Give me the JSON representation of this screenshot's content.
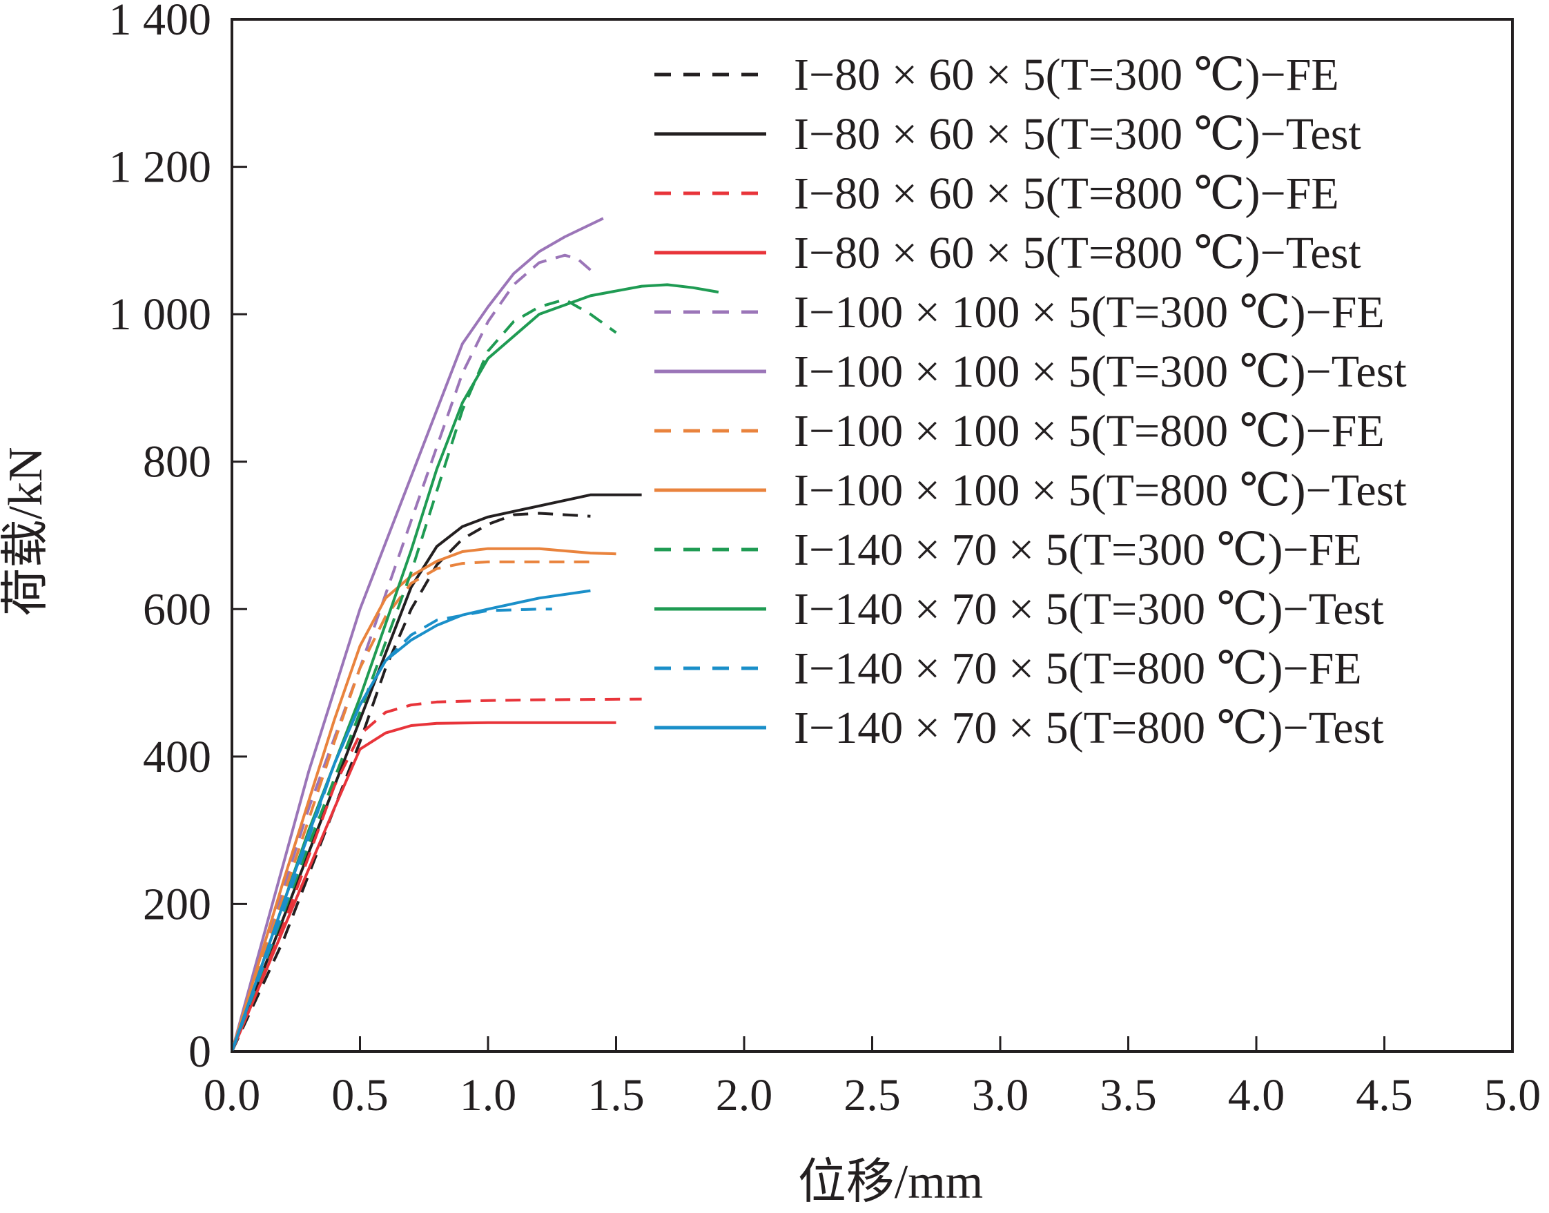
{
  "chart_data": {
    "type": "line",
    "xlabel": "位移/mm",
    "ylabel": "荷载/kN",
    "xlim": [
      0,
      5.0
    ],
    "ylim": [
      0,
      1400
    ],
    "xticks": [
      "0.0",
      "0.5",
      "1.0",
      "1.5",
      "2.0",
      "2.5",
      "3.0",
      "3.5",
      "4.0",
      "4.5",
      "5.0"
    ],
    "yticks": [
      "0",
      "200",
      "400",
      "600",
      "800",
      "1 000",
      "1 200",
      "1 400"
    ],
    "grid": false,
    "legend_position": "top-right",
    "series": [
      {
        "name": "I−80 × 60 × 5(T=300 ℃)−FE",
        "color": "#231f20",
        "dash": true,
        "x": [
          0,
          0.2,
          0.4,
          0.5,
          0.6,
          0.7,
          0.8,
          0.9,
          1.0,
          1.1,
          1.2,
          1.3,
          1.4
        ],
        "y": [
          0,
          150,
          330,
          420,
          520,
          600,
          660,
          695,
          715,
          728,
          730,
          728,
          726
        ]
      },
      {
        "name": "I−80 × 60 × 5(T=300 ℃)−Test",
        "color": "#231f20",
        "dash": false,
        "x": [
          0,
          0.2,
          0.4,
          0.5,
          0.6,
          0.7,
          0.8,
          0.9,
          1.0,
          1.2,
          1.4,
          1.6
        ],
        "y": [
          0,
          180,
          360,
          450,
          540,
          630,
          685,
          712,
          725,
          740,
          755,
          755
        ]
      },
      {
        "name": "I−80 × 60 × 5(T=800 ℃)−FE",
        "color": "#e8343a",
        "dash": true,
        "x": [
          0,
          0.2,
          0.4,
          0.5,
          0.6,
          0.7,
          0.8,
          1.0,
          1.2,
          1.6
        ],
        "y": [
          0,
          170,
          360,
          430,
          460,
          470,
          474,
          476,
          477,
          478
        ]
      },
      {
        "name": "I−80 × 60 × 5(T=800 ℃)−Test",
        "color": "#e8343a",
        "dash": false,
        "x": [
          0,
          0.2,
          0.4,
          0.5,
          0.6,
          0.7,
          0.8,
          1.0,
          1.2,
          1.5
        ],
        "y": [
          0,
          165,
          330,
          410,
          432,
          442,
          445,
          446,
          446,
          446
        ]
      },
      {
        "name": "I−100 × 100 × 5(T=300 ℃)−FE",
        "color": "#9b75b8",
        "dash": true,
        "x": [
          0,
          0.3,
          0.5,
          0.7,
          0.9,
          1.0,
          1.1,
          1.2,
          1.3,
          1.35,
          1.4
        ],
        "y": [
          0,
          330,
          520,
          720,
          920,
          990,
          1040,
          1070,
          1080,
          1075,
          1060
        ]
      },
      {
        "name": "I−100 × 100 × 5(T=300 ℃)−Test",
        "color": "#9b75b8",
        "dash": false,
        "x": [
          0,
          0.3,
          0.5,
          0.7,
          0.9,
          1.0,
          1.1,
          1.2,
          1.3,
          1.45
        ],
        "y": [
          0,
          380,
          600,
          780,
          960,
          1010,
          1055,
          1085,
          1105,
          1130
        ]
      },
      {
        "name": "I−100 × 100 × 5(T=800 ℃)−FE",
        "color": "#e9833d",
        "dash": true,
        "x": [
          0,
          0.2,
          0.4,
          0.5,
          0.6,
          0.7,
          0.8,
          0.9,
          1.0,
          1.2,
          1.4
        ],
        "y": [
          0,
          210,
          420,
          520,
          590,
          635,
          655,
          662,
          664,
          664,
          664
        ]
      },
      {
        "name": "I−100 × 100 × 5(T=800 ℃)−Test",
        "color": "#e9833d",
        "dash": false,
        "x": [
          0,
          0.2,
          0.4,
          0.5,
          0.6,
          0.7,
          0.8,
          0.9,
          1.0,
          1.2,
          1.4,
          1.5
        ],
        "y": [
          0,
          230,
          450,
          550,
          615,
          645,
          665,
          678,
          682,
          682,
          676,
          675
        ]
      },
      {
        "name": "I−140 × 70 × 5(T=300 ℃)−FE",
        "color": "#1f9b53",
        "dash": true,
        "x": [
          0,
          0.3,
          0.5,
          0.7,
          0.8,
          0.9,
          1.0,
          1.1,
          1.2,
          1.3,
          1.4,
          1.5
        ],
        "y": [
          0,
          280,
          460,
          650,
          760,
          870,
          950,
          990,
          1010,
          1020,
          1000,
          975
        ]
      },
      {
        "name": "I−140 × 70 × 5(T=300 ℃)−Test",
        "color": "#1f9b53",
        "dash": false,
        "x": [
          0,
          0.3,
          0.5,
          0.7,
          0.8,
          0.9,
          1.0,
          1.2,
          1.4,
          1.6,
          1.7,
          1.8,
          1.9
        ],
        "y": [
          0,
          300,
          480,
          680,
          790,
          880,
          940,
          1000,
          1025,
          1038,
          1040,
          1036,
          1030
        ]
      },
      {
        "name": "I−140 × 70 × 5(T=800 ℃)−FE",
        "color": "#1a8fc9",
        "dash": true,
        "x": [
          0,
          0.2,
          0.4,
          0.5,
          0.6,
          0.7,
          0.8,
          1.0,
          1.2,
          1.25
        ],
        "y": [
          0,
          190,
          390,
          470,
          530,
          565,
          585,
          598,
          600,
          600
        ]
      },
      {
        "name": "I−140 × 70 × 5(T=800 ℃)−Test",
        "color": "#1a8fc9",
        "dash": false,
        "x": [
          0,
          0.2,
          0.4,
          0.5,
          0.6,
          0.7,
          0.8,
          0.9,
          1.0,
          1.2,
          1.4
        ],
        "y": [
          0,
          200,
          390,
          470,
          530,
          558,
          578,
          592,
          600,
          615,
          625
        ]
      }
    ]
  }
}
